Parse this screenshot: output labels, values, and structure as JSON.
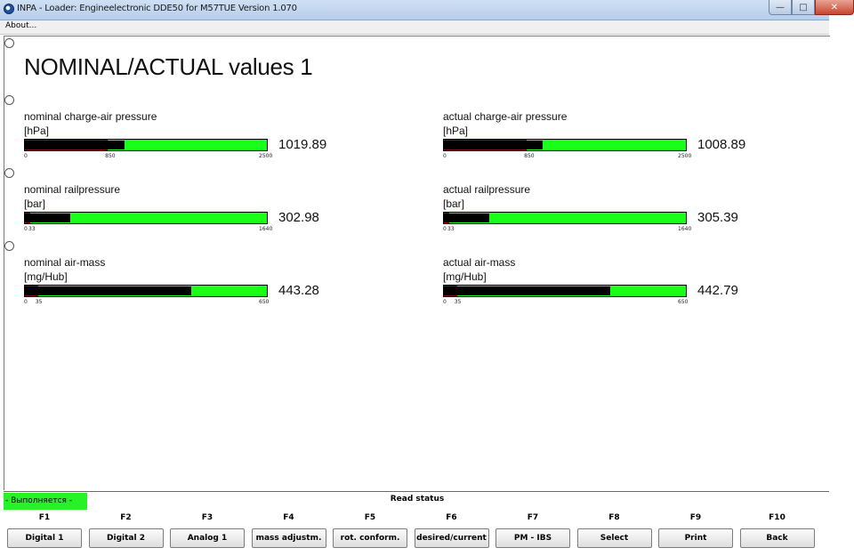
{
  "window": {
    "title": "INPA - Loader:  Engineelectronic DDE50 for M57TUE Version 1.070",
    "minimize_glyph": "—",
    "maximize_glyph": "□",
    "close_glyph": "✕"
  },
  "menu": {
    "items": [
      "About..."
    ]
  },
  "page": {
    "title": "NOMINAL/ACTUAL values 1"
  },
  "gauges": [
    {
      "label": "nominal charge-air pressure",
      "unit": "[hPa]",
      "value_text": "1019.89",
      "min": 0,
      "max": 2500,
      "red_threshold": 850,
      "value": 1019.89,
      "tick_labels": [
        "0",
        "850",
        "2500"
      ]
    },
    {
      "label": "actual charge-air pressure",
      "unit": "[hPa]",
      "value_text": "1008.89",
      "min": 0,
      "max": 2500,
      "red_threshold": 850,
      "value": 1008.89,
      "tick_labels": [
        "0",
        "850",
        "2500"
      ]
    },
    {
      "label": "nominal railpressure",
      "unit": "[bar]",
      "value_text": "302.98",
      "min": 0,
      "max": 1640,
      "red_threshold": 33,
      "value": 302.98,
      "tick_labels": [
        "0",
        "33",
        "1640"
      ]
    },
    {
      "label": "actual railpressure",
      "unit": "[bar]",
      "value_text": "305.39",
      "min": 0,
      "max": 1640,
      "red_threshold": 33,
      "value": 305.39,
      "tick_labels": [
        "0",
        "33",
        "1640"
      ]
    },
    {
      "label": "nominal air-mass",
      "unit": "[mg/Hub]",
      "value_text": "443.28",
      "min": 0,
      "max": 650,
      "red_threshold": 35,
      "value": 443.28,
      "tick_labels": [
        "0",
        "35",
        "650"
      ]
    },
    {
      "label": "actual air-mass",
      "unit": "[mg/Hub]",
      "value_text": "442.79",
      "min": 0,
      "max": 650,
      "red_threshold": 35,
      "value": 442.79,
      "tick_labels": [
        "0",
        "35",
        "650"
      ]
    }
  ],
  "status": {
    "running": "- Выполняется -",
    "message": "Read status"
  },
  "function_keys": [
    {
      "key": "F1",
      "label": "Digital 1"
    },
    {
      "key": "F2",
      "label": "Digital 2"
    },
    {
      "key": "F3",
      "label": "Analog 1"
    },
    {
      "key": "F4",
      "label": "mass adjustm."
    },
    {
      "key": "F5",
      "label": "rot. conform."
    },
    {
      "key": "F6",
      "label": "desired/current"
    },
    {
      "key": "F7",
      "label": "PM - IBS"
    },
    {
      "key": "F8",
      "label": "Select"
    },
    {
      "key": "F9",
      "label": "Print"
    },
    {
      "key": "F10",
      "label": "Back"
    }
  ],
  "colors": {
    "bar_ok": "#19ff19",
    "bar_low": "#8a0a14",
    "bar_value": "#000000",
    "status_running": "#26f226"
  }
}
